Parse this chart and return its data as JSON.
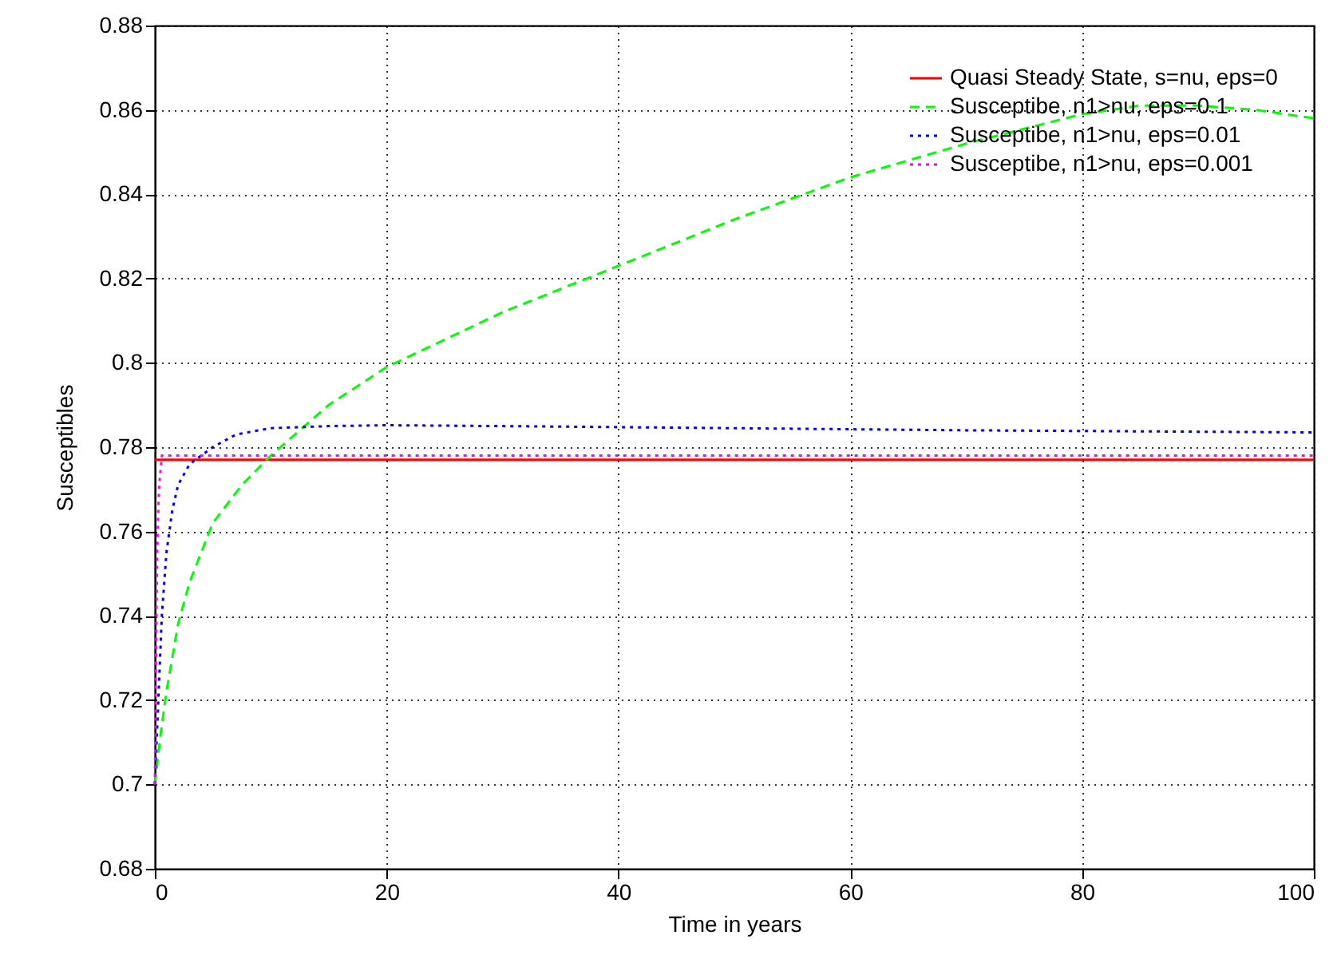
{
  "chart_data": {
    "type": "line",
    "xlabel": "Time in years",
    "ylabel": "Susceptibles",
    "xlim": [
      0,
      100
    ],
    "xticks": [
      0,
      20,
      40,
      60,
      80,
      100
    ],
    "ylim": [
      0.68,
      0.88
    ],
    "yticks": [
      0.68,
      0.7,
      0.72,
      0.74,
      0.76,
      0.78,
      0.8,
      0.82,
      0.84,
      0.86,
      0.88
    ],
    "grid": true,
    "legend": "top right",
    "marker": "none",
    "series": [
      {
        "name": "Quasi Steady State, s=nu, eps=0",
        "color": "#ff0000",
        "line_style": "solid",
        "x": [
          0,
          100
        ],
        "values": [
          0.777,
          0.777
        ]
      },
      {
        "name": "Susceptibe, n1>nu, eps=0.1",
        "color": "#00ff00",
        "line_style": "dashed",
        "x": [
          0,
          0.5,
          1,
          2,
          3,
          5,
          7.5,
          10,
          15,
          20,
          30,
          40,
          50,
          60,
          70,
          80,
          85,
          90,
          95,
          100
        ],
        "values": [
          0.7,
          0.712,
          0.722,
          0.738,
          0.748,
          0.762,
          0.771,
          0.778,
          0.79,
          0.799,
          0.812,
          0.823,
          0.834,
          0.844,
          0.852,
          0.859,
          0.861,
          0.861,
          0.86,
          0.858
        ]
      },
      {
        "name": "Susceptibe, n1>nu, eps=0.01",
        "color": "#0000ff",
        "line_style": "dotted",
        "x": [
          0,
          0.3,
          0.6,
          1,
          1.5,
          2,
          3,
          5,
          7,
          10,
          15,
          20,
          30,
          50,
          70,
          100
        ],
        "values": [
          0.7,
          0.72,
          0.74,
          0.755,
          0.765,
          0.771,
          0.776,
          0.78,
          0.783,
          0.7845,
          0.785,
          0.7852,
          0.785,
          0.7845,
          0.784,
          0.7835
        ]
      },
      {
        "name": "Susceptibe, n1>nu, eps=0.001",
        "color": "#ff00ff",
        "line_style": "dotted",
        "x": [
          0,
          0.1,
          0.2,
          0.35,
          0.6,
          100
        ],
        "values": [
          0.7,
          0.73,
          0.755,
          0.77,
          0.778,
          0.778
        ]
      }
    ]
  }
}
